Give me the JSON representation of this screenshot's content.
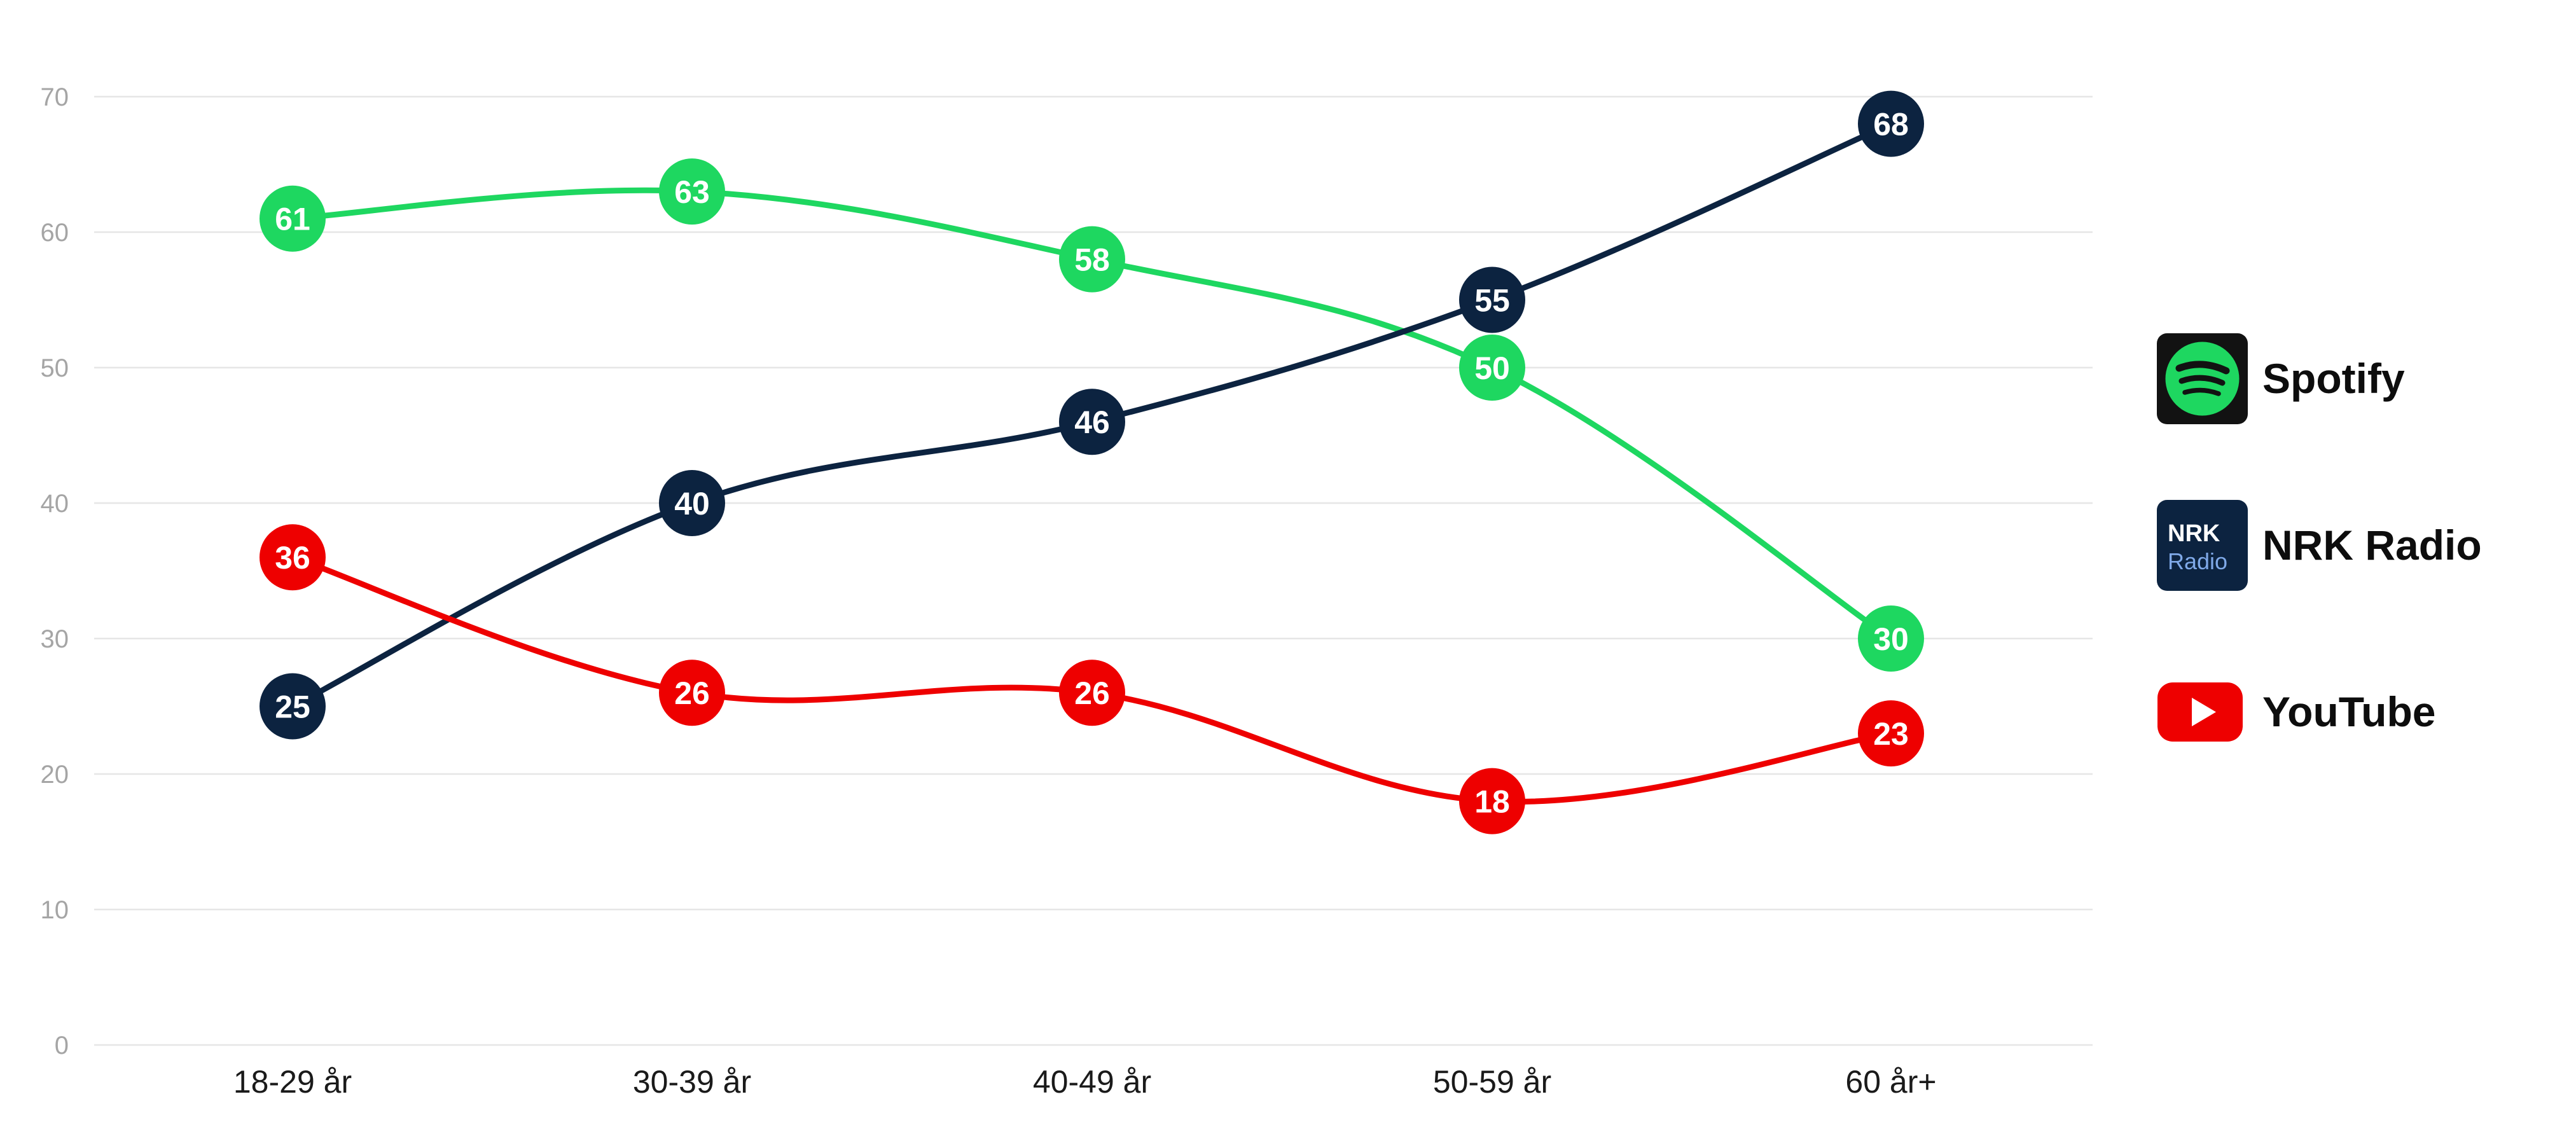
{
  "chart_data": {
    "type": "line",
    "categories": [
      "18-29 år",
      "30-39 år",
      "40-49 år",
      "50-59 år",
      "60 år+"
    ],
    "ylim": [
      0,
      70
    ],
    "yticks": [
      "0",
      "10",
      "20",
      "30",
      "40",
      "50",
      "60",
      "70"
    ],
    "grid": true,
    "legend_position": "right",
    "series": [
      {
        "name": "Spotify",
        "color": "#1ed760",
        "values": [
          61,
          63,
          58,
          50,
          30
        ]
      },
      {
        "name": "NRK Radio",
        "color": "#0c2340",
        "values": [
          25,
          40,
          46,
          55,
          68
        ]
      },
      {
        "name": "YouTube",
        "color": "#ee0000",
        "values": [
          36,
          26,
          26,
          18,
          23
        ]
      }
    ]
  },
  "legend": {
    "items": [
      {
        "label": "Spotify",
        "icon": "spotify-icon"
      },
      {
        "label": "NRK Radio",
        "icon": "nrk-radio-icon",
        "icon_text_top": "NRK",
        "icon_text_bottom": "Radio"
      },
      {
        "label": "YouTube",
        "icon": "youtube-icon"
      }
    ]
  }
}
